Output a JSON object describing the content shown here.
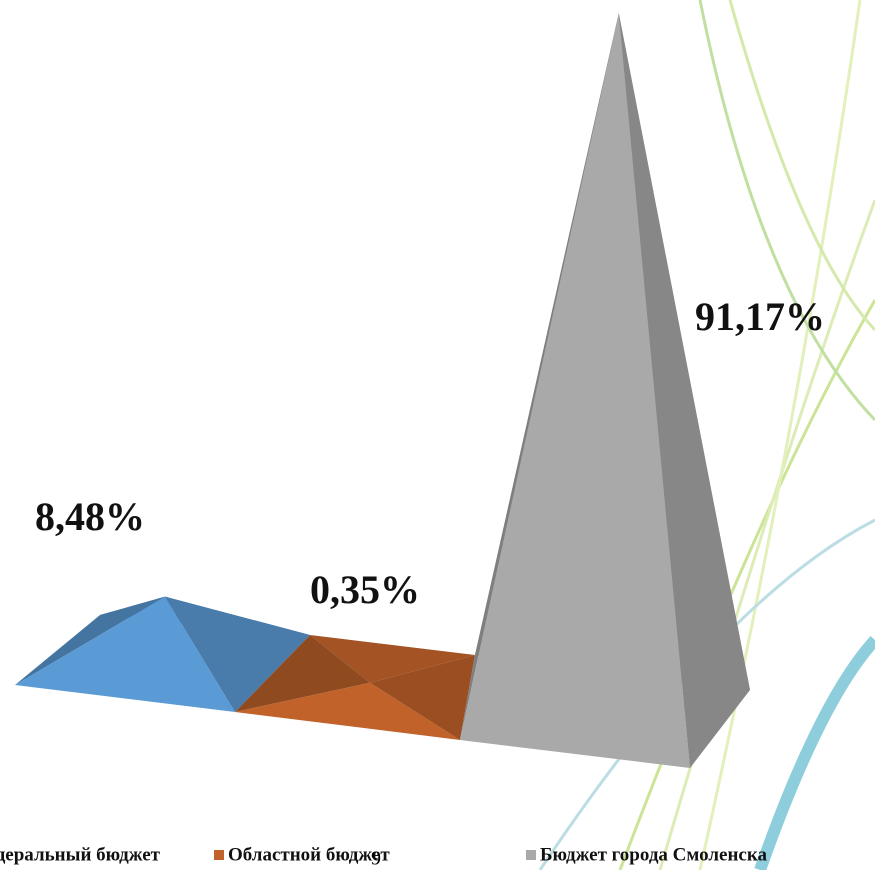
{
  "chart_data": {
    "type": "pyramid3d",
    "categories": [
      "Федеральный бюджет",
      "Областной бюджет",
      "Бюджет города Смоленска"
    ],
    "values": [
      8.48,
      0.35,
      91.17
    ],
    "value_labels": [
      "8,48%",
      "0,35%",
      "91,17%"
    ],
    "colors": [
      "#5b9bd5",
      "#c0622a",
      "#a9a9a9"
    ]
  },
  "page_number": "9"
}
